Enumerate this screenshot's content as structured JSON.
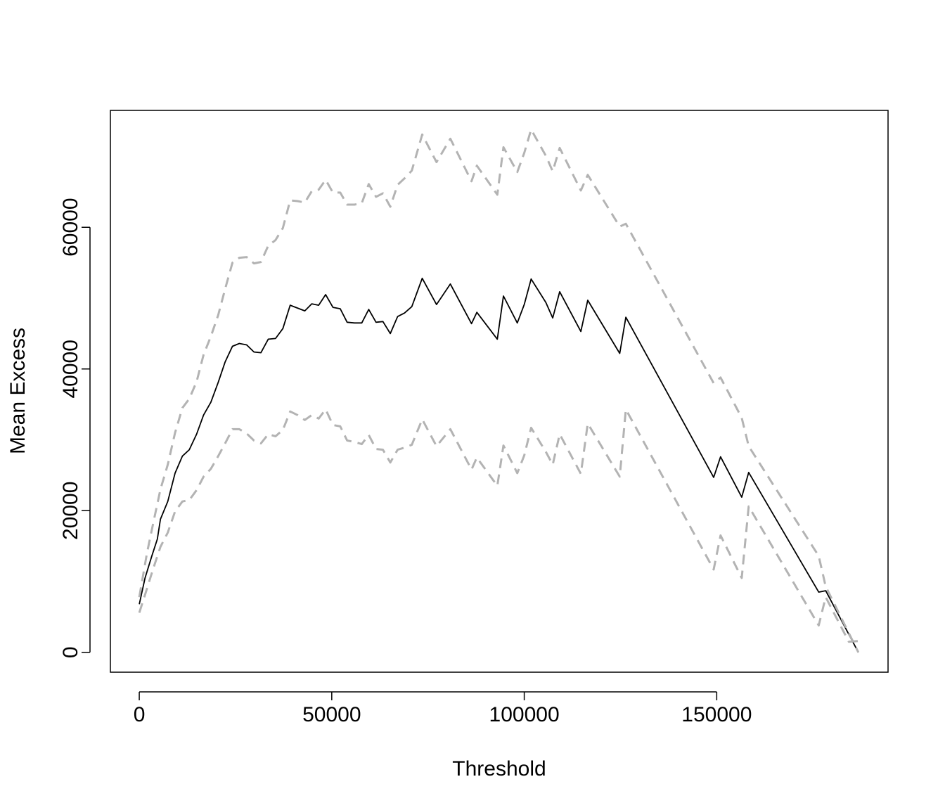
{
  "chart_data": {
    "type": "line",
    "title": "",
    "xlabel": "Threshold",
    "ylabel": "Mean Excess",
    "xlim": [
      -7500,
      194500
    ],
    "ylim": [
      -2800,
      76500
    ],
    "grid": false,
    "legend": "none",
    "x_ticks": [
      0,
      50000,
      100000,
      150000
    ],
    "x_tick_labels": [
      "0",
      "50000",
      "100000",
      "150000"
    ],
    "y_ticks": [
      0,
      20000,
      40000,
      60000
    ],
    "y_tick_labels": [
      "0",
      "20000",
      "40000",
      "60000"
    ],
    "series": [
      {
        "role": "mean-excess",
        "color": "#000000",
        "dash": "solid",
        "points": [
          [
            0,
            6800
          ],
          [
            1500,
            10500
          ],
          [
            3200,
            13500
          ],
          [
            4700,
            16000
          ],
          [
            5500,
            18800
          ],
          [
            7400,
            21300
          ],
          [
            9300,
            25300
          ],
          [
            11200,
            27700
          ],
          [
            13000,
            28600
          ],
          [
            14900,
            30800
          ],
          [
            16700,
            33500
          ],
          [
            18600,
            35300
          ],
          [
            20500,
            38100
          ],
          [
            22300,
            41000
          ],
          [
            24200,
            43200
          ],
          [
            26000,
            43600
          ],
          [
            27900,
            43400
          ],
          [
            29800,
            42400
          ],
          [
            31600,
            42300
          ],
          [
            33500,
            44200
          ],
          [
            35400,
            44300
          ],
          [
            37300,
            45700
          ],
          [
            39200,
            49000
          ],
          [
            41100,
            48600
          ],
          [
            43000,
            48200
          ],
          [
            44800,
            49200
          ],
          [
            46600,
            49000
          ],
          [
            48400,
            50500
          ],
          [
            50300,
            48700
          ],
          [
            52200,
            48500
          ],
          [
            54000,
            46600
          ],
          [
            55900,
            46500
          ],
          [
            57800,
            46500
          ],
          [
            59600,
            48400
          ],
          [
            61500,
            46600
          ],
          [
            63300,
            46700
          ],
          [
            65200,
            45000
          ],
          [
            67100,
            47400
          ],
          [
            68900,
            47900
          ],
          [
            70800,
            48800
          ],
          [
            73500,
            52800
          ],
          [
            77200,
            49100
          ],
          [
            80800,
            52000
          ],
          [
            86300,
            46400
          ],
          [
            87700,
            48000
          ],
          [
            93000,
            44200
          ],
          [
            94600,
            50300
          ],
          [
            98200,
            46500
          ],
          [
            100000,
            49100
          ],
          [
            101800,
            52700
          ],
          [
            105600,
            49400
          ],
          [
            107400,
            47200
          ],
          [
            109200,
            50900
          ],
          [
            114700,
            45300
          ],
          [
            116500,
            49700
          ],
          [
            124800,
            42200
          ],
          [
            126400,
            47300
          ],
          [
            149200,
            24700
          ],
          [
            151000,
            27600
          ],
          [
            156500,
            21900
          ],
          [
            158300,
            25400
          ],
          [
            176500,
            8500
          ],
          [
            178300,
            8700
          ],
          [
            186800,
            0
          ]
        ]
      },
      {
        "role": "upper-bound",
        "color": "#b3b3b3",
        "dash": "dashed",
        "points": [
          [
            0,
            7800
          ],
          [
            2000,
            14000
          ],
          [
            3800,
            18700
          ],
          [
            5500,
            23000
          ],
          [
            7400,
            26500
          ],
          [
            9300,
            31000
          ],
          [
            11200,
            34500
          ],
          [
            13000,
            35800
          ],
          [
            14900,
            38200
          ],
          [
            16700,
            42000
          ],
          [
            18600,
            44600
          ],
          [
            20500,
            47600
          ],
          [
            22300,
            51300
          ],
          [
            24200,
            55000
          ],
          [
            26000,
            55700
          ],
          [
            27900,
            55800
          ],
          [
            29800,
            54900
          ],
          [
            31600,
            55100
          ],
          [
            33500,
            57400
          ],
          [
            35400,
            58200
          ],
          [
            37300,
            59900
          ],
          [
            39200,
            63800
          ],
          [
            41100,
            63700
          ],
          [
            43000,
            63500
          ],
          [
            44800,
            65100
          ],
          [
            46600,
            65300
          ],
          [
            48400,
            66700
          ],
          [
            50300,
            64900
          ],
          [
            52200,
            64900
          ],
          [
            54000,
            63200
          ],
          [
            55900,
            63200
          ],
          [
            57800,
            63400
          ],
          [
            59600,
            66100
          ],
          [
            61500,
            64300
          ],
          [
            63300,
            64800
          ],
          [
            65200,
            62900
          ],
          [
            67100,
            66000
          ],
          [
            68900,
            66900
          ],
          [
            70800,
            68000
          ],
          [
            73500,
            73100
          ],
          [
            77200,
            69200
          ],
          [
            80800,
            72500
          ],
          [
            86300,
            66500
          ],
          [
            87700,
            68700
          ],
          [
            93000,
            64600
          ],
          [
            94600,
            71300
          ],
          [
            98200,
            67800
          ],
          [
            100000,
            70500
          ],
          [
            101800,
            73800
          ],
          [
            105600,
            70100
          ],
          [
            107400,
            67900
          ],
          [
            109200,
            71200
          ],
          [
            114700,
            65200
          ],
          [
            116500,
            67400
          ],
          [
            124800,
            60100
          ],
          [
            126400,
            60500
          ],
          [
            149200,
            38000
          ],
          [
            151000,
            38800
          ],
          [
            156500,
            33100
          ],
          [
            158300,
            29100
          ],
          [
            176500,
            13600
          ],
          [
            178300,
            9300
          ],
          [
            186800,
            0
          ]
        ]
      },
      {
        "role": "lower-bound",
        "color": "#b3b3b3",
        "dash": "dashed",
        "points": [
          [
            0,
            5600
          ],
          [
            1600,
            8300
          ],
          [
            3500,
            11600
          ],
          [
            5500,
            14900
          ],
          [
            7400,
            16900
          ],
          [
            9300,
            19900
          ],
          [
            11200,
            21300
          ],
          [
            13000,
            21500
          ],
          [
            14900,
            22900
          ],
          [
            16700,
            24800
          ],
          [
            18600,
            25900
          ],
          [
            20500,
            27700
          ],
          [
            22300,
            29500
          ],
          [
            24200,
            31500
          ],
          [
            26000,
            31500
          ],
          [
            27900,
            30900
          ],
          [
            29800,
            29900
          ],
          [
            31600,
            29500
          ],
          [
            33500,
            30800
          ],
          [
            35400,
            30500
          ],
          [
            37300,
            31400
          ],
          [
            39200,
            34000
          ],
          [
            41100,
            33500
          ],
          [
            43000,
            32800
          ],
          [
            44800,
            33500
          ],
          [
            46600,
            33000
          ],
          [
            48400,
            34300
          ],
          [
            50300,
            32100
          ],
          [
            52200,
            31900
          ],
          [
            54000,
            29900
          ],
          [
            55900,
            29700
          ],
          [
            57800,
            29400
          ],
          [
            59600,
            30700
          ],
          [
            61500,
            28700
          ],
          [
            63300,
            28600
          ],
          [
            65200,
            26800
          ],
          [
            67100,
            28600
          ],
          [
            68900,
            28900
          ],
          [
            70800,
            29300
          ],
          [
            73500,
            32900
          ],
          [
            77200,
            29100
          ],
          [
            80800,
            31500
          ],
          [
            86300,
            25800
          ],
          [
            87700,
            27500
          ],
          [
            93000,
            23500
          ],
          [
            94600,
            29200
          ],
          [
            98200,
            25300
          ],
          [
            100000,
            27800
          ],
          [
            101800,
            31700
          ],
          [
            105600,
            28300
          ],
          [
            107400,
            26500
          ],
          [
            109200,
            30800
          ],
          [
            114700,
            25200
          ],
          [
            116500,
            32300
          ],
          [
            124800,
            24800
          ],
          [
            126400,
            34300
          ],
          [
            149200,
            11700
          ],
          [
            151000,
            16500
          ],
          [
            156500,
            10500
          ],
          [
            158300,
            20600
          ],
          [
            176500,
            3800
          ],
          [
            178300,
            7800
          ],
          [
            184300,
            1500
          ],
          [
            186800,
            1600
          ]
        ]
      }
    ]
  }
}
